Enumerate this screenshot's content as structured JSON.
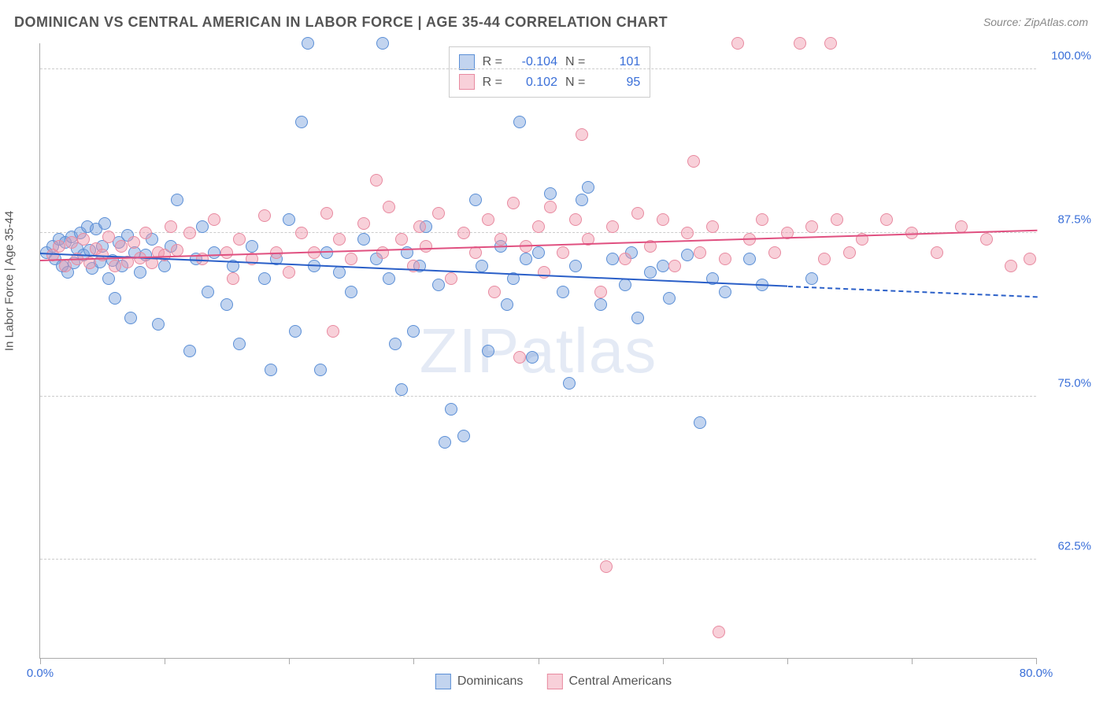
{
  "title": "DOMINICAN VS CENTRAL AMERICAN IN LABOR FORCE | AGE 35-44 CORRELATION CHART",
  "source": "Source: ZipAtlas.com",
  "ylabel": "In Labor Force | Age 35-44",
  "watermark": "ZIPatlas",
  "chart": {
    "type": "scatter",
    "background_color": "#ffffff",
    "grid_color": "#cccccc",
    "axis_color": "#aaaaaa",
    "tick_label_color": "#3a6fd8",
    "xlim": [
      0,
      80
    ],
    "ylim": [
      55,
      102
    ],
    "xticks": [
      0,
      10,
      20,
      30,
      40,
      50,
      60,
      70,
      80
    ],
    "xtick_labels": {
      "0": "0.0%",
      "80": "80.0%"
    },
    "yticks": [
      62.5,
      75.0,
      87.5,
      100.0
    ],
    "ytick_labels": [
      "62.5%",
      "75.0%",
      "87.5%",
      "100.0%"
    ],
    "marker_radius": 8,
    "series": [
      {
        "name": "Dominicans",
        "fill": "rgba(120,160,220,0.45)",
        "stroke": "#5b8fd6",
        "line_color": "#2a5fc8",
        "r": "-0.104",
        "n": "101",
        "trend": {
          "x1": 0,
          "y1": 86.0,
          "x2_solid": 60,
          "y2_solid": 83.5,
          "x2": 80,
          "y2": 82.7
        },
        "points": [
          [
            0.5,
            86
          ],
          [
            1,
            86.5
          ],
          [
            1.2,
            85.5
          ],
          [
            1.5,
            87
          ],
          [
            1.8,
            85
          ],
          [
            2,
            86.8
          ],
          [
            2.2,
            84.5
          ],
          [
            2.5,
            87.2
          ],
          [
            2.7,
            85.2
          ],
          [
            3,
            86.3
          ],
          [
            3.2,
            87.5
          ],
          [
            3.5,
            85.8
          ],
          [
            3.8,
            88
          ],
          [
            4,
            86.2
          ],
          [
            4.2,
            84.8
          ],
          [
            4.5,
            87.8
          ],
          [
            4.8,
            85.3
          ],
          [
            5,
            86.5
          ],
          [
            5.2,
            88.2
          ],
          [
            5.5,
            84
          ],
          [
            5.8,
            85.4
          ],
          [
            6,
            82.5
          ],
          [
            6.3,
            86.8
          ],
          [
            6.6,
            85
          ],
          [
            7,
            87.3
          ],
          [
            7.3,
            81
          ],
          [
            7.6,
            86
          ],
          [
            8,
            84.5
          ],
          [
            8.5,
            85.8
          ],
          [
            9,
            87
          ],
          [
            9.5,
            80.5
          ],
          [
            10,
            85
          ],
          [
            10.5,
            86.5
          ],
          [
            11,
            90
          ],
          [
            12,
            78.5
          ],
          [
            12.5,
            85.5
          ],
          [
            13,
            88
          ],
          [
            13.5,
            83
          ],
          [
            14,
            86
          ],
          [
            15,
            82
          ],
          [
            15.5,
            85
          ],
          [
            16,
            79
          ],
          [
            17,
            86.5
          ],
          [
            18,
            84
          ],
          [
            18.5,
            77
          ],
          [
            19,
            85.5
          ],
          [
            20,
            88.5
          ],
          [
            20.5,
            80
          ],
          [
            21,
            96
          ],
          [
            21.5,
            102
          ],
          [
            22,
            85
          ],
          [
            22.5,
            77
          ],
          [
            23,
            86
          ],
          [
            24,
            84.5
          ],
          [
            25,
            83
          ],
          [
            26,
            87
          ],
          [
            27,
            85.5
          ],
          [
            27.5,
            102
          ],
          [
            28,
            84
          ],
          [
            28.5,
            79
          ],
          [
            29,
            75.5
          ],
          [
            29.5,
            86
          ],
          [
            30,
            80
          ],
          [
            30.5,
            85
          ],
          [
            31,
            88
          ],
          [
            32,
            83.5
          ],
          [
            32.5,
            71.5
          ],
          [
            33,
            74
          ],
          [
            34,
            72
          ],
          [
            35,
            90
          ],
          [
            35.5,
            85
          ],
          [
            36,
            78.5
          ],
          [
            37,
            86.5
          ],
          [
            37.5,
            82
          ],
          [
            38,
            84
          ],
          [
            38.5,
            96
          ],
          [
            39,
            85.5
          ],
          [
            39.5,
            78
          ],
          [
            40,
            86
          ],
          [
            41,
            90.5
          ],
          [
            42,
            83
          ],
          [
            42.5,
            76
          ],
          [
            43,
            85
          ],
          [
            43.5,
            90
          ],
          [
            44,
            91
          ],
          [
            45,
            82
          ],
          [
            46,
            85.5
          ],
          [
            47,
            83.5
          ],
          [
            47.5,
            86
          ],
          [
            48,
            81
          ],
          [
            49,
            84.5
          ],
          [
            50,
            85
          ],
          [
            50.5,
            82.5
          ],
          [
            52,
            85.8
          ],
          [
            53,
            73
          ],
          [
            54,
            84
          ],
          [
            55,
            83
          ],
          [
            57,
            85.5
          ],
          [
            58,
            83.5
          ],
          [
            62,
            84
          ]
        ]
      },
      {
        "name": "Central Americans",
        "fill": "rgba(240,150,170,0.45)",
        "stroke": "#e88aa0",
        "line_color": "#e05080",
        "r": "0.102",
        "n": "95",
        "trend": {
          "x1": 0,
          "y1": 85.5,
          "x2_solid": 80,
          "y2_solid": 87.8,
          "x2": 80,
          "y2": 87.8
        },
        "points": [
          [
            1,
            85.8
          ],
          [
            1.5,
            86.5
          ],
          [
            2,
            85
          ],
          [
            2.5,
            86.8
          ],
          [
            3,
            85.5
          ],
          [
            3.5,
            87
          ],
          [
            4,
            85.2
          ],
          [
            4.5,
            86.3
          ],
          [
            5,
            85.8
          ],
          [
            5.5,
            87.2
          ],
          [
            6,
            85
          ],
          [
            6.5,
            86.5
          ],
          [
            7,
            85.3
          ],
          [
            7.5,
            86.8
          ],
          [
            8,
            85.6
          ],
          [
            8.5,
            87.5
          ],
          [
            9,
            85.2
          ],
          [
            9.5,
            86
          ],
          [
            10,
            85.8
          ],
          [
            10.5,
            88
          ],
          [
            11,
            86.2
          ],
          [
            12,
            87.5
          ],
          [
            13,
            85.5
          ],
          [
            14,
            88.5
          ],
          [
            15,
            86
          ],
          [
            15.5,
            84
          ],
          [
            16,
            87
          ],
          [
            17,
            85.5
          ],
          [
            18,
            88.8
          ],
          [
            19,
            86
          ],
          [
            20,
            84.5
          ],
          [
            21,
            87.5
          ],
          [
            22,
            86
          ],
          [
            23,
            89
          ],
          [
            23.5,
            80
          ],
          [
            24,
            87
          ],
          [
            25,
            85.5
          ],
          [
            26,
            88.2
          ],
          [
            27,
            91.5
          ],
          [
            27.5,
            86
          ],
          [
            28,
            89.5
          ],
          [
            29,
            87
          ],
          [
            30,
            85
          ],
          [
            30.5,
            88
          ],
          [
            31,
            86.5
          ],
          [
            32,
            89
          ],
          [
            33,
            84
          ],
          [
            34,
            87.5
          ],
          [
            35,
            86
          ],
          [
            36,
            88.5
          ],
          [
            36.5,
            83
          ],
          [
            37,
            87
          ],
          [
            38,
            89.8
          ],
          [
            38.5,
            78
          ],
          [
            39,
            86.5
          ],
          [
            40,
            88
          ],
          [
            40.5,
            84.5
          ],
          [
            41,
            89.5
          ],
          [
            42,
            86
          ],
          [
            43,
            88.5
          ],
          [
            43.5,
            95
          ],
          [
            44,
            87
          ],
          [
            45,
            83
          ],
          [
            45.5,
            62
          ],
          [
            46,
            88
          ],
          [
            47,
            85.5
          ],
          [
            48,
            89
          ],
          [
            49,
            86.5
          ],
          [
            50,
            88.5
          ],
          [
            51,
            85
          ],
          [
            52,
            87.5
          ],
          [
            52.5,
            93
          ],
          [
            53,
            86
          ],
          [
            54,
            88
          ],
          [
            54.5,
            57
          ],
          [
            55,
            85.5
          ],
          [
            56,
            102
          ],
          [
            57,
            87
          ],
          [
            58,
            88.5
          ],
          [
            59,
            86
          ],
          [
            60,
            87.5
          ],
          [
            61,
            102
          ],
          [
            62,
            88
          ],
          [
            63,
            85.5
          ],
          [
            63.5,
            102
          ],
          [
            64,
            88.5
          ],
          [
            65,
            86
          ],
          [
            66,
            87
          ],
          [
            68,
            88.5
          ],
          [
            70,
            87.5
          ],
          [
            72,
            86
          ],
          [
            74,
            88
          ],
          [
            76,
            87
          ],
          [
            78,
            85
          ],
          [
            79.5,
            85.5
          ]
        ]
      }
    ]
  },
  "legend": {
    "series1": "Dominicans",
    "series2": "Central Americans"
  }
}
